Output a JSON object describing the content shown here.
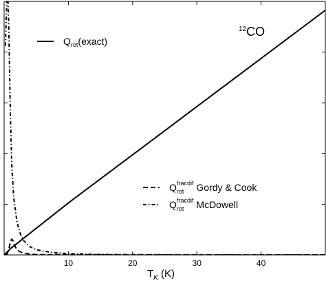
{
  "chart_data": {
    "type": "line",
    "title": "",
    "xlabel": {
      "main": "T",
      "sub": "K",
      "unit": " (K)"
    },
    "ylabel": "",
    "xlim": [
      0,
      50
    ],
    "ylim": [
      0,
      20
    ],
    "x_ticks": [
      10,
      20,
      30,
      40
    ],
    "y_ticks": [
      4,
      8,
      12,
      16
    ],
    "annotation": {
      "sup": "12",
      "main": "CO"
    },
    "legend_upper": [
      {
        "main": "Q",
        "sub": "rot",
        "rest": "(exact)"
      }
    ],
    "legend_lower": [
      {
        "main": "Q",
        "sub": "rot",
        "sup": "fracdif",
        "rest": " Gordy & Cook"
      },
      {
        "main": "Q",
        "sub": "rot",
        "sup": "fracdif",
        "rest": " McDowell"
      }
    ],
    "series": [
      {
        "style": "solid",
        "x": [
          0,
          1,
          10,
          20,
          30,
          40,
          50
        ],
        "y": [
          0.0,
          0.5,
          4.1,
          7.9,
          11.7,
          15.5,
          19.3
        ]
      },
      {
        "style": "dashed",
        "x": [
          0.3,
          0.5,
          0.8,
          1.0,
          1.2,
          1.4,
          1.6,
          1.9,
          2.3,
          2.8,
          3.5,
          4.5,
          6,
          10,
          20,
          50
        ],
        "y": [
          0.0,
          0.1,
          0.6,
          1.1,
          1.25,
          1.1,
          0.8,
          0.5,
          0.3,
          0.18,
          0.1,
          0.05,
          0.02,
          0.0,
          0.0,
          0.0
        ]
      },
      {
        "style": "dashdot",
        "x": [
          0.2,
          0.4,
          0.5,
          0.6,
          0.7,
          0.8,
          0.9,
          1.0,
          1.2,
          1.5,
          2.0,
          2.5,
          3.0,
          4.0,
          5.0,
          6.0,
          8.0,
          10.0,
          15,
          20,
          30,
          50
        ],
        "y": [
          16.5,
          19.8,
          21,
          20,
          18.5,
          16,
          13,
          10.5,
          7,
          4.5,
          2.6,
          1.7,
          1.15,
          0.65,
          0.42,
          0.3,
          0.17,
          0.1,
          0.04,
          0.02,
          0.0,
          0.0
        ]
      }
    ]
  }
}
